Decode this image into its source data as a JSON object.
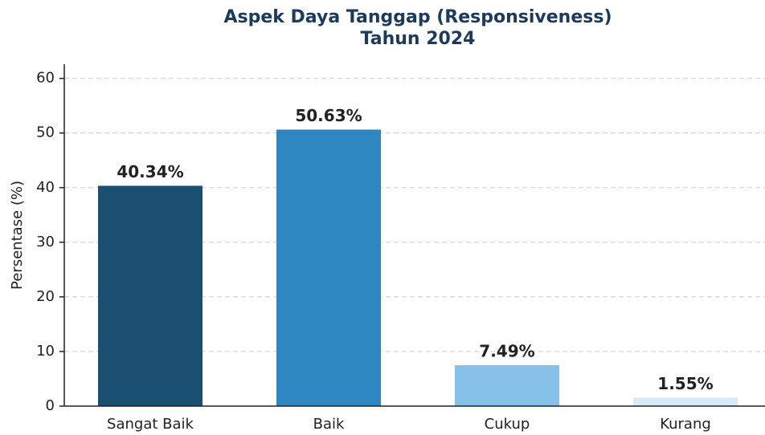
{
  "chart_data": {
    "type": "bar",
    "title": [
      "Aspek Daya Tanggap (Responsiveness)",
      "Tahun 2024"
    ],
    "ylabel": "Persentase (%)",
    "categories": [
      "Sangat Baik",
      "Baik",
      "Cukup",
      "Kurang"
    ],
    "values": [
      40.34,
      50.63,
      7.49,
      1.55
    ],
    "value_labels": [
      "40.34%",
      "50.63%",
      "7.49%",
      "1.55%"
    ],
    "colors": [
      "#1b4f72",
      "#2e86c1",
      "#85c1e9",
      "#d6eaf8"
    ],
    "ylim": [
      0,
      62.6
    ],
    "yticks": [
      0,
      10,
      20,
      30,
      40,
      50,
      60
    ],
    "grid": true
  }
}
